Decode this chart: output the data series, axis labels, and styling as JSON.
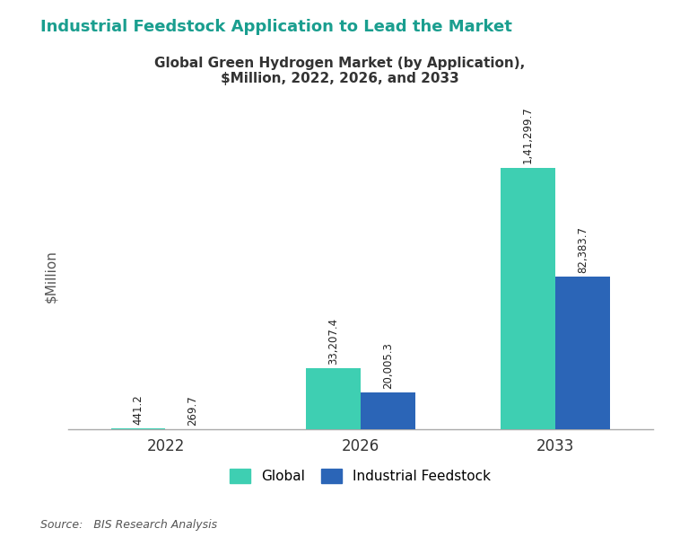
{
  "title_main": "Industrial Feedstock Application to Lead the Market",
  "title_sub": "Global Green Hydrogen Market (by Application),\n$Million, 2022, 2026, and 2033",
  "years": [
    "2022",
    "2026",
    "2033"
  ],
  "global_values": [
    441.2,
    33207.4,
    141299.7
  ],
  "feedstock_values": [
    269.7,
    20005.3,
    82383.7
  ],
  "global_labels": [
    "441.2",
    "33,207.4",
    "1,41,299.7"
  ],
  "feedstock_labels": [
    "269.7",
    "20,005.3",
    "82,383.7"
  ],
  "color_global": "#3ecfb2",
  "color_feedstock": "#2b65b7",
  "ylabel": "$Million",
  "legend_global": "Global",
  "legend_feedstock": "Industrial Feedstock",
  "source_text": "Source:   BIS Research Analysis",
  "title_main_color": "#1a9e8f",
  "title_sub_color": "#333333",
  "bar_width": 0.28,
  "ylim": [
    0,
    165000
  ],
  "background_color": "#ffffff"
}
